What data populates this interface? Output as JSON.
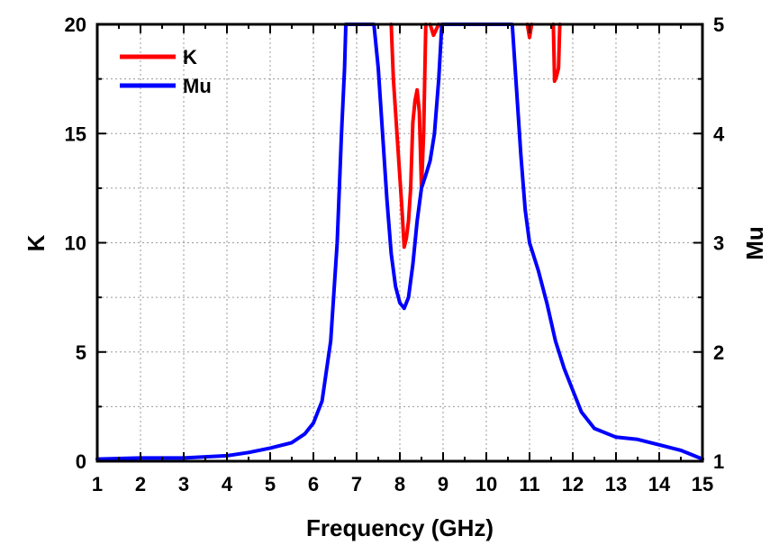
{
  "chart_data": {
    "type": "line",
    "xlabel": "Frequency (GHz)",
    "ylabel": "K",
    "y2label": "Mu",
    "xlim": [
      1,
      15
    ],
    "ylim": [
      0,
      20
    ],
    "y2lim": [
      1,
      5
    ],
    "xticks": [
      1,
      2,
      3,
      4,
      5,
      6,
      7,
      8,
      9,
      10,
      11,
      12,
      13,
      14,
      15
    ],
    "yticks": [
      0,
      5,
      10,
      15,
      20
    ],
    "y2ticks": [
      1,
      2,
      3,
      4,
      5
    ],
    "grid": true,
    "legend_position": "top-left",
    "series": [
      {
        "name": "K",
        "axis": "left",
        "color": "#ff0000",
        "segments": [
          [
            [
              7.8,
              20
            ],
            [
              7.85,
              17.5
            ],
            [
              7.95,
              14.5
            ],
            [
              8.05,
              11.5
            ],
            [
              8.1,
              9.8
            ],
            [
              8.15,
              10.2
            ],
            [
              8.2,
              11.0
            ],
            [
              8.25,
              12.5
            ],
            [
              8.3,
              15.5
            ],
            [
              8.35,
              16.5
            ],
            [
              8.4,
              17.0
            ],
            [
              8.45,
              16.0
            ],
            [
              8.5,
              12.5
            ],
            [
              8.55,
              15.0
            ],
            [
              8.6,
              20
            ]
          ],
          [
            [
              8.7,
              20
            ],
            [
              8.78,
              19.5
            ],
            [
              8.85,
              19.8
            ],
            [
              8.9,
              20
            ]
          ],
          [
            [
              10.95,
              20
            ],
            [
              11.0,
              19.4
            ],
            [
              11.05,
              20
            ]
          ],
          [
            [
              11.55,
              20
            ],
            [
              11.58,
              17.4
            ],
            [
              11.62,
              17.6
            ],
            [
              11.67,
              18.0
            ],
            [
              11.7,
              20
            ]
          ]
        ]
      },
      {
        "name": "Mu",
        "axis": "right",
        "color": "#0000ff",
        "points": [
          [
            1,
            1.02
          ],
          [
            2,
            1.03
          ],
          [
            3,
            1.03
          ],
          [
            4,
            1.05
          ],
          [
            4.5,
            1.08
          ],
          [
            5,
            1.12
          ],
          [
            5.5,
            1.17
          ],
          [
            5.8,
            1.25
          ],
          [
            6.0,
            1.35
          ],
          [
            6.2,
            1.55
          ],
          [
            6.4,
            2.1
          ],
          [
            6.55,
            3.0
          ],
          [
            6.65,
            4.0
          ],
          [
            6.72,
            4.6
          ],
          [
            6.75,
            5.0
          ],
          [
            7.4,
            5.0
          ],
          [
            7.5,
            4.6
          ],
          [
            7.6,
            4.0
          ],
          [
            7.7,
            3.4
          ],
          [
            7.8,
            2.9
          ],
          [
            7.9,
            2.6
          ],
          [
            8.0,
            2.45
          ],
          [
            8.1,
            2.4
          ],
          [
            8.2,
            2.5
          ],
          [
            8.3,
            2.8
          ],
          [
            8.4,
            3.2
          ],
          [
            8.5,
            3.5
          ],
          [
            8.6,
            3.62
          ],
          [
            8.7,
            3.75
          ],
          [
            8.8,
            4.0
          ],
          [
            8.9,
            4.5
          ],
          [
            8.97,
            5.0
          ],
          [
            10.6,
            5.0
          ],
          [
            10.7,
            4.4
          ],
          [
            10.8,
            3.8
          ],
          [
            10.9,
            3.3
          ],
          [
            11.0,
            3.0
          ],
          [
            11.2,
            2.75
          ],
          [
            11.4,
            2.45
          ],
          [
            11.6,
            2.1
          ],
          [
            11.8,
            1.85
          ],
          [
            12.0,
            1.65
          ],
          [
            12.2,
            1.45
          ],
          [
            12.5,
            1.3
          ],
          [
            13.0,
            1.22
          ],
          [
            13.5,
            1.2
          ],
          [
            14.0,
            1.15
          ],
          [
            14.5,
            1.1
          ],
          [
            15.0,
            1.02
          ]
        ]
      }
    ]
  }
}
